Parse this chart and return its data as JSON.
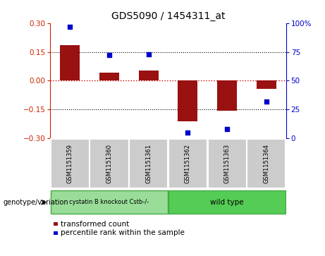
{
  "title": "GDS5090 / 1454311_at",
  "samples": [
    "GSM1151359",
    "GSM1151360",
    "GSM1151361",
    "GSM1151362",
    "GSM1151363",
    "GSM1151364"
  ],
  "bar_values": [
    0.185,
    0.042,
    0.052,
    -0.21,
    -0.155,
    -0.042
  ],
  "percentile_values": [
    97,
    72,
    73,
    5,
    8,
    32
  ],
  "bar_color": "#991111",
  "dot_color": "#0000cc",
  "zero_line_color": "#cc0000",
  "ylim": [
    -0.3,
    0.3
  ],
  "y2lim": [
    0,
    100
  ],
  "yticks": [
    -0.3,
    -0.15,
    0,
    0.15,
    0.3
  ],
  "y2ticks": [
    0,
    25,
    50,
    75,
    100
  ],
  "dotted_levels": [
    0.15,
    -0.15
  ],
  "group1_label": "cystatin B knockout Cstb-/-",
  "group2_label": "wild type",
  "group1_color": "#99dd99",
  "group2_color": "#55cc55",
  "group1_samples": [
    0,
    1,
    2
  ],
  "group2_samples": [
    3,
    4,
    5
  ],
  "genotype_label": "genotype/variation",
  "legend1": "transformed count",
  "legend2": "percentile rank within the sample",
  "bar_width": 0.5,
  "sample_box_color": "#cccccc",
  "title_fontsize": 10,
  "tick_fontsize": 7.5,
  "legend_fontsize": 7.5
}
